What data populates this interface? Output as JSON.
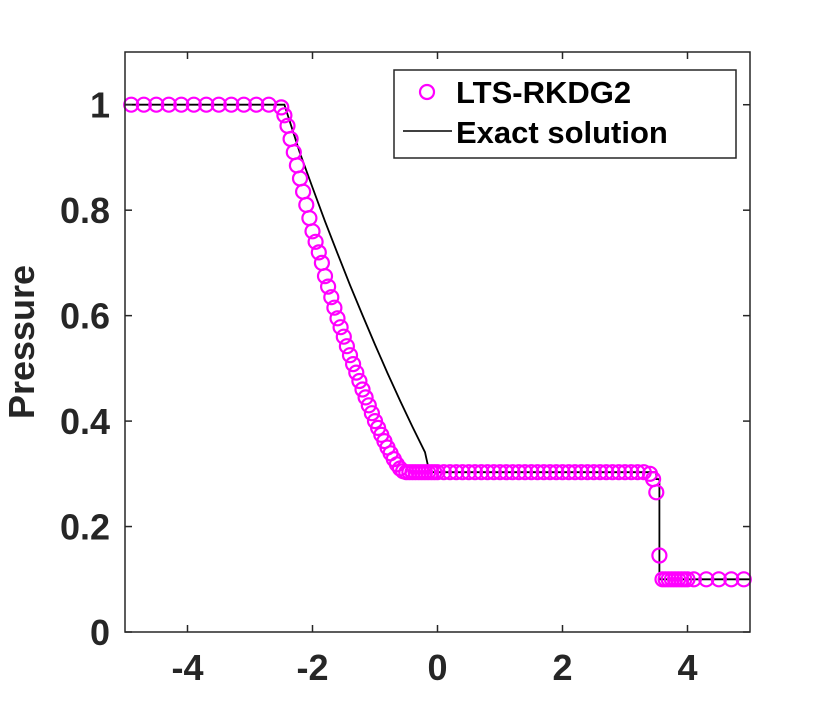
{
  "chart_data": {
    "type": "line",
    "title": "",
    "xlabel": "",
    "ylabel": "Pressure",
    "xlim": [
      -5,
      5
    ],
    "ylim": [
      0,
      1.1
    ],
    "xticks": [
      -4,
      -2,
      0,
      2,
      4
    ],
    "xtick_labels": [
      "-4",
      "-2",
      "0",
      "2",
      "4"
    ],
    "yticks": [
      0,
      0.2,
      0.4,
      0.6,
      0.8,
      1
    ],
    "ytick_labels": [
      "0",
      "0.2",
      "0.4",
      "0.6",
      "0.8",
      "1"
    ],
    "grid": false,
    "legend_position": "top-right",
    "colors": {
      "numerical": "#ff00ff",
      "exact": "#000000",
      "axes": "#262626"
    },
    "series": [
      {
        "name": "LTS-RKDG2",
        "style": "markers",
        "marker": "circle-open",
        "x": [
          -4.9,
          -4.7,
          -4.5,
          -4.3,
          -4.1,
          -3.9,
          -3.7,
          -3.5,
          -3.3,
          -3.1,
          -2.9,
          -2.7,
          -2.5,
          -2.45,
          -2.4,
          -2.35,
          -2.3,
          -2.25,
          -2.2,
          -2.15,
          -2.1,
          -2.05,
          -2.0,
          -1.95,
          -1.9,
          -1.85,
          -1.8,
          -1.75,
          -1.7,
          -1.65,
          -1.6,
          -1.55,
          -1.5,
          -1.45,
          -1.4,
          -1.35,
          -1.3,
          -1.25,
          -1.2,
          -1.15,
          -1.1,
          -1.05,
          -1.0,
          -0.95,
          -0.9,
          -0.85,
          -0.8,
          -0.75,
          -0.7,
          -0.65,
          -0.6,
          -0.55,
          -0.5,
          -0.45,
          -0.4,
          -0.35,
          -0.3,
          -0.25,
          -0.2,
          -0.15,
          -0.1,
          -0.05,
          0.0,
          0.1,
          0.2,
          0.3,
          0.4,
          0.5,
          0.6,
          0.7,
          0.8,
          0.9,
          1.0,
          1.1,
          1.2,
          1.3,
          1.4,
          1.5,
          1.6,
          1.7,
          1.8,
          1.9,
          2.0,
          2.1,
          2.2,
          2.3,
          2.4,
          2.5,
          2.6,
          2.7,
          2.8,
          2.9,
          3.0,
          3.1,
          3.2,
          3.3,
          3.4,
          3.45,
          3.5,
          3.55,
          3.6,
          3.65,
          3.7,
          3.75,
          3.8,
          3.85,
          3.9,
          3.95,
          4.0,
          4.1,
          4.3,
          4.5,
          4.7,
          4.9
        ],
        "y": [
          1.0,
          1.0,
          1.0,
          1.0,
          1.0,
          1.0,
          1.0,
          1.0,
          1.0,
          1.0,
          1.0,
          1.0,
          0.995,
          0.98,
          0.96,
          0.935,
          0.91,
          0.885,
          0.86,
          0.835,
          0.81,
          0.785,
          0.76,
          0.74,
          0.72,
          0.7,
          0.675,
          0.655,
          0.635,
          0.615,
          0.595,
          0.578,
          0.56,
          0.542,
          0.525,
          0.508,
          0.492,
          0.476,
          0.46,
          0.445,
          0.43,
          0.415,
          0.4,
          0.387,
          0.374,
          0.362,
          0.35,
          0.339,
          0.328,
          0.318,
          0.31,
          0.305,
          0.303,
          0.303,
          0.303,
          0.303,
          0.303,
          0.303,
          0.303,
          0.303,
          0.303,
          0.303,
          0.303,
          0.303,
          0.303,
          0.303,
          0.303,
          0.303,
          0.303,
          0.303,
          0.303,
          0.303,
          0.303,
          0.303,
          0.303,
          0.303,
          0.303,
          0.303,
          0.303,
          0.303,
          0.303,
          0.303,
          0.303,
          0.303,
          0.303,
          0.303,
          0.303,
          0.303,
          0.303,
          0.303,
          0.303,
          0.303,
          0.303,
          0.303,
          0.303,
          0.303,
          0.3,
          0.29,
          0.265,
          0.145,
          0.1,
          0.1,
          0.1,
          0.1,
          0.1,
          0.1,
          0.1,
          0.1,
          0.1,
          0.1,
          0.1,
          0.1,
          0.1,
          0.1
        ]
      },
      {
        "name": "Exact solution",
        "style": "line",
        "x": [
          -5,
          -2.45,
          -2.2,
          -2.0,
          -1.8,
          -1.6,
          -1.4,
          -1.2,
          -1.0,
          -0.8,
          -0.6,
          -0.4,
          -0.2,
          -0.13,
          3.5,
          3.5,
          3.55,
          3.55,
          5
        ],
        "y": [
          1.0,
          1.0,
          0.908,
          0.843,
          0.779,
          0.718,
          0.658,
          0.601,
          0.545,
          0.491,
          0.439,
          0.389,
          0.341,
          0.303,
          0.303,
          0.29,
          0.29,
          0.1,
          0.1
        ]
      }
    ]
  }
}
